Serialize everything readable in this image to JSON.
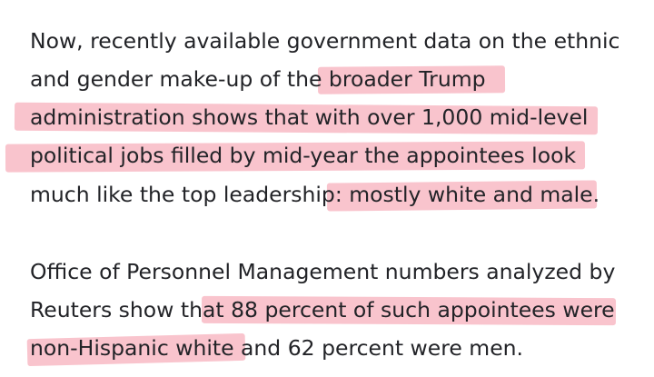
{
  "highlight_color": "#f494a4",
  "text_color": "#222327",
  "paragraphs": [
    {
      "lines": [
        {
          "parts": [
            "Now, recently available government data on the ethnic"
          ]
        },
        {
          "parts": [
            "and gender make-up of the ",
            "broader Trump"
          ]
        },
        {
          "parts": [
            "administration shows that with over 1,000 mid-level"
          ]
        },
        {
          "parts": [
            "political jobs filled by mid-year the appointees look"
          ]
        },
        {
          "parts": [
            "much like the top leadership",
            ": mostly white and male."
          ]
        }
      ]
    },
    {
      "lines": [
        {
          "parts": [
            "Office of Personnel Management numbers analyzed by"
          ]
        },
        {
          "parts": [
            "Reuters show tha",
            "t 88 percent of such appointees were"
          ]
        },
        {
          "parts": [
            "non-Hispanic white",
            " and 62 percent were men."
          ]
        }
      ]
    }
  ]
}
